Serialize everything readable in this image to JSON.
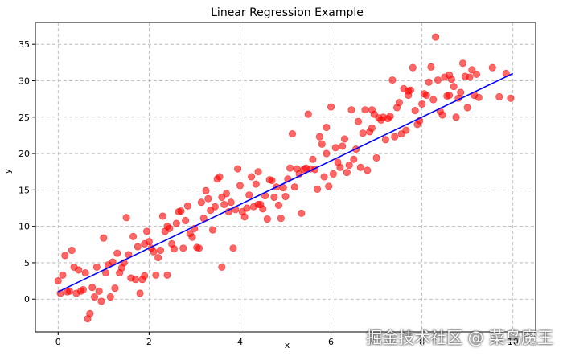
{
  "chart_data": {
    "type": "scatter",
    "title": "Linear Regression Example",
    "xlabel": "x",
    "ylabel": "y",
    "xlim": [
      -0.5,
      10.5
    ],
    "ylim": [
      -4.5,
      38
    ],
    "xticks": [
      0,
      2,
      4,
      6,
      8,
      10
    ],
    "yticks": [
      0,
      5,
      10,
      15,
      20,
      25,
      30,
      35
    ],
    "grid": true,
    "colors": {
      "points": "#ff0000",
      "line": "#0000ff",
      "grid": "#b0b0b0"
    },
    "series": [
      {
        "type": "scatter",
        "points": [
          [
            0.0,
            2.5
          ],
          [
            0.05,
            0.8
          ],
          [
            0.1,
            3.3
          ],
          [
            0.15,
            6.0
          ],
          [
            0.2,
            1.0
          ],
          [
            0.25,
            1.1
          ],
          [
            0.3,
            6.7
          ],
          [
            0.35,
            4.4
          ],
          [
            0.4,
            0.8
          ],
          [
            0.45,
            4.0
          ],
          [
            0.5,
            1.1
          ],
          [
            0.55,
            1.3
          ],
          [
            0.6,
            3.6
          ],
          [
            0.65,
            -2.7
          ],
          [
            0.7,
            -2.0
          ],
          [
            0.75,
            1.6
          ],
          [
            0.8,
            0.3
          ],
          [
            0.85,
            4.4
          ],
          [
            0.9,
            1.1
          ],
          [
            0.95,
            -0.3
          ],
          [
            1.0,
            8.4
          ],
          [
            1.05,
            3.6
          ],
          [
            1.1,
            4.7
          ],
          [
            1.15,
            0.3
          ],
          [
            1.2,
            5.1
          ],
          [
            1.25,
            1.5
          ],
          [
            1.3,
            6.3
          ],
          [
            1.35,
            3.6
          ],
          [
            1.4,
            4.3
          ],
          [
            1.45,
            5.0
          ],
          [
            1.5,
            11.2
          ],
          [
            1.55,
            6.1
          ],
          [
            1.6,
            2.9
          ],
          [
            1.65,
            8.6
          ],
          [
            1.7,
            2.7
          ],
          [
            1.75,
            7.2
          ],
          [
            1.8,
            0.8
          ],
          [
            1.85,
            2.7
          ],
          [
            1.9,
            7.6
          ],
          [
            1.95,
            9.3
          ],
          [
            2.0,
            7.9
          ],
          [
            2.05,
            7.0
          ],
          [
            2.1,
            6.5
          ],
          [
            2.15,
            3.3
          ],
          [
            2.2,
            5.7
          ],
          [
            2.25,
            6.7
          ],
          [
            2.3,
            11.4
          ],
          [
            2.35,
            9.3
          ],
          [
            2.4,
            3.3
          ],
          [
            2.45,
            9.7
          ],
          [
            2.5,
            7.6
          ],
          [
            2.55,
            6.9
          ],
          [
            2.6,
            10.4
          ],
          [
            2.65,
            12.0
          ],
          [
            2.7,
            12.1
          ],
          [
            2.75,
            7.0
          ],
          [
            2.8,
            10.8
          ],
          [
            2.85,
            12.8
          ],
          [
            2.9,
            9.0
          ],
          [
            2.95,
            8.5
          ],
          [
            3.0,
            9.7
          ],
          [
            3.05,
            7.1
          ],
          [
            3.1,
            7.0
          ],
          [
            3.15,
            13.3
          ],
          [
            3.2,
            11.1
          ],
          [
            3.25,
            14.9
          ],
          [
            3.3,
            13.8
          ],
          [
            3.35,
            12.2
          ],
          [
            3.4,
            9.5
          ],
          [
            3.45,
            12.7
          ],
          [
            3.5,
            16.5
          ],
          [
            3.55,
            16.8
          ],
          [
            3.6,
            4.4
          ],
          [
            3.65,
            13.0
          ],
          [
            3.7,
            14.5
          ],
          [
            3.75,
            12.0
          ],
          [
            3.8,
            13.3
          ],
          [
            3.85,
            7.0
          ],
          [
            3.9,
            12.3
          ],
          [
            3.95,
            17.9
          ],
          [
            4.0,
            15.6
          ],
          [
            4.05,
            12.0
          ],
          [
            4.1,
            11.3
          ],
          [
            4.15,
            12.5
          ],
          [
            4.2,
            14.3
          ],
          [
            4.25,
            16.8
          ],
          [
            4.3,
            12.7
          ],
          [
            4.35,
            15.8
          ],
          [
            4.4,
            17.5
          ],
          [
            4.45,
            13.0
          ],
          [
            4.5,
            12.4
          ],
          [
            4.55,
            14.2
          ],
          [
            4.6,
            11.0
          ],
          [
            4.65,
            16.4
          ],
          [
            4.7,
            16.3
          ],
          [
            4.75,
            14.0
          ],
          [
            4.8,
            15.4
          ],
          [
            4.85,
            12.9
          ],
          [
            4.9,
            11.1
          ],
          [
            4.95,
            15.3
          ],
          [
            5.0,
            14.1
          ],
          [
            5.05,
            16.5
          ],
          [
            5.1,
            18.0
          ],
          [
            5.15,
            22.7
          ],
          [
            5.2,
            15.4
          ],
          [
            5.25,
            17.9
          ],
          [
            5.3,
            17.2
          ],
          [
            5.35,
            11.8
          ],
          [
            5.4,
            17.8
          ],
          [
            5.45,
            18.0
          ],
          [
            5.5,
            25.4
          ],
          [
            5.55,
            17.9
          ],
          [
            5.6,
            19.2
          ],
          [
            5.65,
            17.8
          ],
          [
            5.7,
            15.1
          ],
          [
            5.75,
            22.3
          ],
          [
            5.8,
            21.3
          ],
          [
            5.85,
            16.8
          ],
          [
            5.9,
            23.6
          ],
          [
            5.95,
            15.5
          ],
          [
            6.0,
            26.4
          ],
          [
            6.05,
            17.2
          ],
          [
            6.1,
            20.8
          ],
          [
            6.15,
            18.8
          ],
          [
            6.2,
            18.1
          ],
          [
            6.25,
            21.0
          ],
          [
            6.3,
            22.0
          ],
          [
            6.35,
            17.4
          ],
          [
            6.4,
            18.4
          ],
          [
            6.45,
            26.0
          ],
          [
            6.5,
            19.2
          ],
          [
            6.55,
            20.6
          ],
          [
            6.6,
            24.4
          ],
          [
            6.65,
            18.1
          ],
          [
            6.7,
            22.8
          ],
          [
            6.75,
            26.0
          ],
          [
            6.8,
            17.7
          ],
          [
            6.85,
            23.0
          ],
          [
            6.9,
            23.5
          ],
          [
            6.95,
            25.4
          ],
          [
            7.0,
            19.4
          ],
          [
            7.05,
            24.9
          ],
          [
            7.1,
            24.6
          ],
          [
            7.15,
            25.0
          ],
          [
            7.2,
            21.9
          ],
          [
            7.25,
            24.8
          ],
          [
            7.3,
            25.1
          ],
          [
            7.35,
            30.1
          ],
          [
            7.4,
            22.3
          ],
          [
            7.45,
            26.3
          ],
          [
            7.5,
            27.0
          ],
          [
            7.55,
            22.7
          ],
          [
            7.6,
            28.9
          ],
          [
            7.65,
            23.2
          ],
          [
            7.7,
            28.6
          ],
          [
            7.75,
            28.7
          ],
          [
            7.8,
            31.8
          ],
          [
            7.85,
            25.9
          ],
          [
            7.9,
            24.0
          ],
          [
            7.95,
            24.5
          ],
          [
            8.0,
            26.8
          ],
          [
            8.05,
            28.2
          ],
          [
            8.1,
            28.0
          ],
          [
            8.15,
            29.8
          ],
          [
            8.2,
            31.9
          ],
          [
            8.25,
            27.4
          ],
          [
            8.3,
            36.0
          ],
          [
            8.35,
            30.1
          ],
          [
            8.4,
            25.8
          ],
          [
            8.45,
            25.3
          ],
          [
            8.5,
            30.5
          ],
          [
            8.55,
            27.9
          ],
          [
            8.6,
            30.8
          ],
          [
            8.65,
            30.2
          ],
          [
            8.7,
            29.2
          ],
          [
            8.75,
            25.0
          ],
          [
            8.8,
            27.6
          ],
          [
            8.85,
            28.4
          ],
          [
            8.9,
            32.4
          ],
          [
            8.95,
            30.6
          ],
          [
            9.0,
            26.3
          ],
          [
            9.05,
            30.5
          ],
          [
            9.1,
            31.5
          ],
          [
            9.15,
            28.0
          ],
          [
            9.2,
            30.9
          ],
          [
            9.25,
            27.7
          ],
          [
            1.9,
            3.2
          ],
          [
            2.4,
            10.0
          ],
          [
            3.6,
            14.0
          ],
          [
            4.4,
            13.0
          ],
          [
            5.9,
            20.0
          ],
          [
            6.9,
            26.0
          ],
          [
            7.7,
            28.0
          ],
          [
            8.6,
            28.0
          ],
          [
            9.55,
            31.8
          ],
          [
            9.7,
            27.8
          ],
          [
            9.85,
            31.0
          ],
          [
            9.95,
            27.6
          ]
        ]
      },
      {
        "type": "line",
        "points": [
          [
            0,
            1.0
          ],
          [
            10,
            31.0
          ]
        ]
      }
    ]
  },
  "watermark": "掘金技术社区 @ 菜鸟魔王"
}
